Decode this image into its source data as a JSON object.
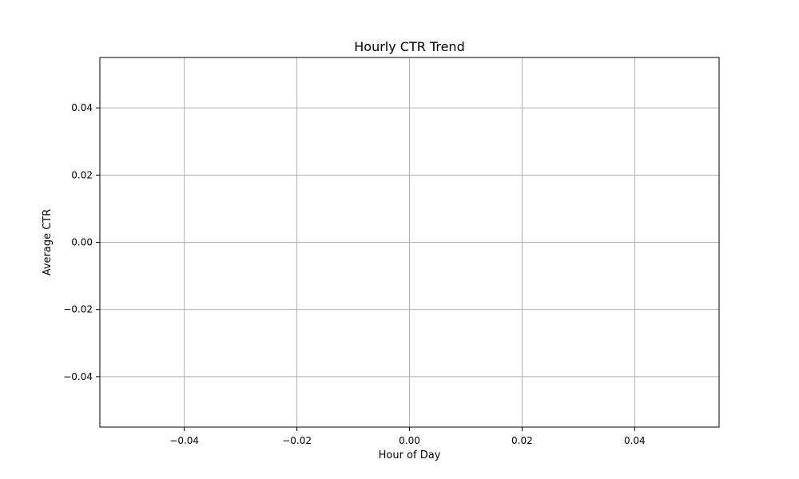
{
  "chart_data": {
    "type": "line",
    "title": "Hourly CTR Trend",
    "xlabel": "Hour of Day",
    "ylabel": "Average CTR",
    "xlim": [
      -0.055,
      0.055
    ],
    "ylim": [
      -0.055,
      0.055
    ],
    "x_ticks": [
      -0.04,
      -0.02,
      0.0,
      0.02,
      0.04
    ],
    "x_tick_labels": [
      "−0.04",
      "−0.02",
      "0.00",
      "0.02",
      "0.04"
    ],
    "y_ticks": [
      -0.04,
      -0.02,
      0.0,
      0.02,
      0.04
    ],
    "y_tick_labels": [
      "−0.04",
      "−0.02",
      "0.00",
      "0.02",
      "0.04"
    ],
    "grid": true,
    "grid_color": "#b0b0b0",
    "axis_color": "#000000",
    "background": "#ffffff",
    "series": []
  }
}
